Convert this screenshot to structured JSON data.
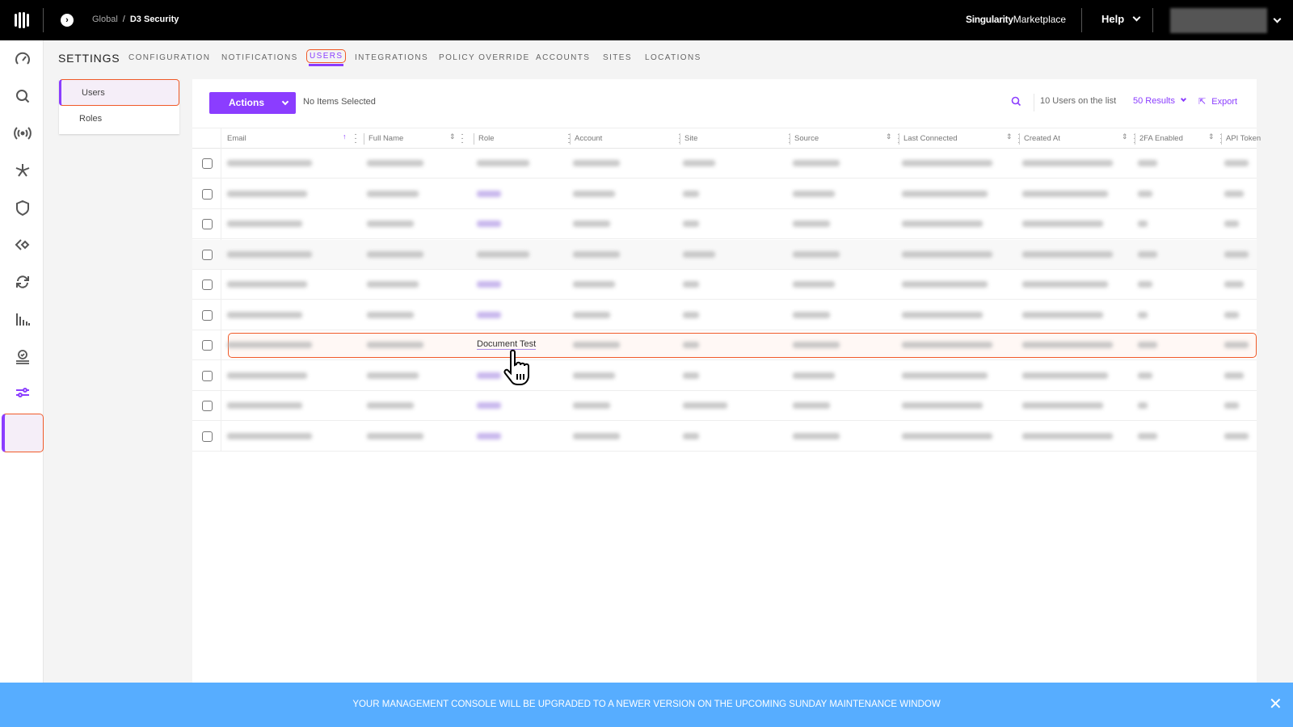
{
  "topbar": {
    "breadcrumb": {
      "parent": "Global",
      "separator": "/",
      "current": "D3 Security"
    },
    "marketplace": {
      "bold": "Singularity",
      "regular": "Marketplace"
    },
    "help_label": "Help",
    "user_name_redacted": true
  },
  "sidebar": {
    "items": [
      {
        "icon": "dashboard-icon"
      },
      {
        "icon": "search-icon"
      },
      {
        "icon": "broadcast-icon"
      },
      {
        "icon": "star-burst-icon"
      },
      {
        "icon": "shield-icon"
      },
      {
        "icon": "diamond-tag-icon"
      },
      {
        "icon": "sync-icon"
      },
      {
        "icon": "bar-chart-icon"
      },
      {
        "icon": "badge-icon"
      },
      {
        "icon": "sliders-icon",
        "active": true
      }
    ]
  },
  "settings": {
    "title": "SETTINGS",
    "tabs": [
      "CONFIGURATION",
      "NOTIFICATIONS",
      "USERS",
      "INTEGRATIONS",
      "POLICY OVERRIDE",
      "ACCOUNTS",
      "SITES",
      "LOCATIONS"
    ],
    "active_tab": "USERS"
  },
  "submenu": {
    "items": [
      "Users",
      "Roles"
    ],
    "active": "Users"
  },
  "toolbar": {
    "actions_label": "Actions",
    "selection_status": "No Items Selected",
    "count_text": "10 Users on the list",
    "results_label": "50 Results",
    "export_label": "Export"
  },
  "table": {
    "columns": [
      "Email",
      "Full Name",
      "Role",
      "Account",
      "Site",
      "Source",
      "Last Connected",
      "Created At",
      "2FA Enabled",
      "API Token"
    ],
    "sorted_column": "Email",
    "sort_direction": "ascending",
    "rows_redacted": true,
    "row_count": 10,
    "role_link_rows": [
      1,
      2,
      4,
      5,
      7,
      8,
      9
    ],
    "highlighted_row": 6,
    "highlighted_role": "Document Test"
  },
  "banner": {
    "text": "YOUR MANAGEMENT CONSOLE WILL BE UPGRADED TO A NEWER VERSION ON THE UPCOMING SUNDAY MAINTENANCE WINDOW",
    "close_icon": "close-icon"
  },
  "colors": {
    "accent": "#8b3dff",
    "highlight": "#f05a28",
    "banner": "#57adff"
  }
}
